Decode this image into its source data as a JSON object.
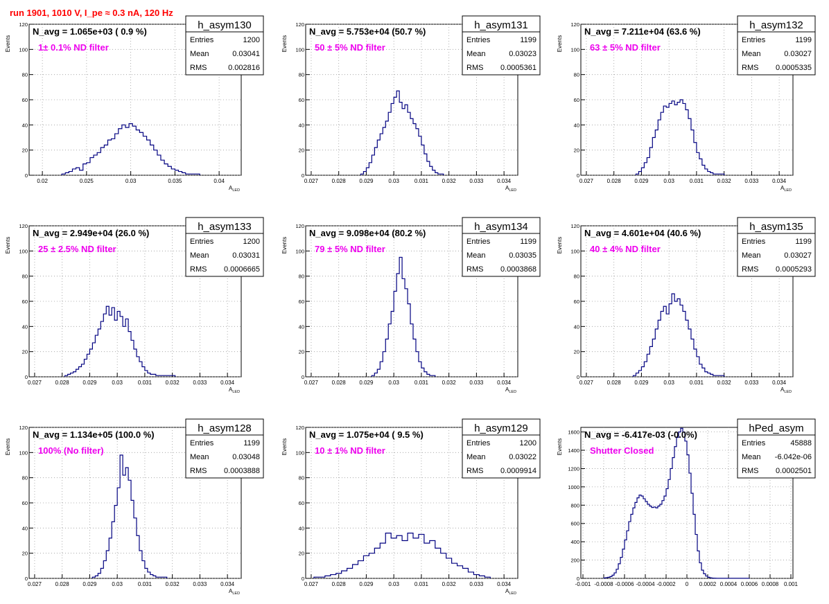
{
  "run_title": "run 1901,  1010 V, I_pe ≈ 0.3 nA, 120 Hz",
  "colors": {
    "histogram": "#000080",
    "note": "#ee00ee",
    "run_title": "#ff0000",
    "grid": "#9a9a9a",
    "axis": "#000000"
  },
  "stats_labels": {
    "entries": "Entries",
    "mean": "Mean",
    "rms": "RMS"
  },
  "chart_data": [
    {
      "type": "bar",
      "name": "h_asym130",
      "navg": "N_avg = 1.065e+03 ( 0.9 %)",
      "note": "1± 0.1% ND filter",
      "stats": {
        "entries": "1200",
        "mean": "0.03041",
        "rms": "0.002816"
      },
      "xlabel": "A_LED",
      "ylabel": "Events",
      "xlim": [
        0.0185,
        0.0425
      ],
      "ylim": [
        0,
        120
      ],
      "xticks": [
        0.02,
        0.025,
        0.03,
        0.035,
        0.04
      ],
      "xticklabels": [
        "0.02",
        "0.025",
        "0.03",
        "0.035",
        "0.04"
      ],
      "yticks": [
        0,
        20,
        40,
        60,
        80,
        100,
        120
      ],
      "grid": true,
      "bin_width": 0.0004,
      "bin_edges": [
        0.0222,
        0.0378
      ],
      "values": [
        1,
        2,
        3,
        5,
        6,
        4,
        9,
        10,
        14,
        16,
        18,
        22,
        24,
        28,
        29,
        33,
        37,
        40,
        38,
        41,
        39,
        36,
        34,
        31,
        28,
        24,
        20,
        16,
        12,
        9,
        7,
        5,
        4,
        3,
        2,
        1,
        1,
        1,
        1
      ]
    },
    {
      "type": "bar",
      "name": "h_asym131",
      "navg": "N_avg = 5.753e+04 (50.7 %)",
      "note": "50 ± 5% ND filter",
      "stats": {
        "entries": "1199",
        "mean": "0.03023",
        "rms": "0.0005361"
      },
      "xlabel": "A_LED",
      "ylabel": "Events",
      "xlim": [
        0.0268,
        0.0345
      ],
      "ylim": [
        0,
        120
      ],
      "xticks": [
        0.027,
        0.028,
        0.029,
        0.03,
        0.031,
        0.032,
        0.033,
        0.034
      ],
      "xticklabels": [
        "0.027",
        "0.028",
        "0.029",
        "0.03",
        "0.031",
        "0.032",
        "0.033",
        "0.034"
      ],
      "yticks": [
        0,
        20,
        40,
        60,
        80,
        100,
        120
      ],
      "grid": true,
      "bin_width": 0.0001,
      "bin_edges": [
        0.0288,
        0.0318
      ],
      "values": [
        1,
        3,
        6,
        10,
        16,
        22,
        28,
        33,
        38,
        43,
        50,
        57,
        62,
        67,
        58,
        53,
        56,
        50,
        45,
        41,
        37,
        31,
        24,
        17,
        11,
        7,
        4,
        2,
        1,
        1
      ]
    },
    {
      "type": "bar",
      "name": "h_asym132",
      "navg": "N_avg = 7.211e+04 (63.6 %)",
      "note": "63 ± 5% ND filter",
      "stats": {
        "entries": "1199",
        "mean": "0.03027",
        "rms": "0.0005335"
      },
      "xlabel": "A_LED",
      "ylabel": "Events",
      "xlim": [
        0.0268,
        0.0345
      ],
      "ylim": [
        0,
        120
      ],
      "xticks": [
        0.027,
        0.028,
        0.029,
        0.03,
        0.031,
        0.032,
        0.033,
        0.034
      ],
      "xticklabels": [
        "0.027",
        "0.028",
        "0.029",
        "0.03",
        "0.031",
        "0.032",
        "0.033",
        "0.034"
      ],
      "yticks": [
        0,
        20,
        40,
        60,
        80,
        100,
        120
      ],
      "grid": true,
      "bin_width": 0.0001,
      "bin_edges": [
        0.0288,
        0.032
      ],
      "values": [
        1,
        3,
        6,
        10,
        14,
        22,
        30,
        36,
        44,
        50,
        55,
        54,
        57,
        59,
        56,
        58,
        60,
        57,
        52,
        45,
        36,
        26,
        18,
        13,
        8,
        5,
        3,
        2,
        1,
        1,
        1,
        1
      ]
    },
    {
      "type": "bar",
      "name": "h_asym133",
      "navg": "N_avg = 2.949e+04 (26.0 %)",
      "note": "25 ± 2.5% ND filter",
      "stats": {
        "entries": "1200",
        "mean": "0.03031",
        "rms": "0.0006665"
      },
      "xlabel": "A_LED",
      "ylabel": "Events",
      "xlim": [
        0.0268,
        0.0345
      ],
      "ylim": [
        0,
        120
      ],
      "xticks": [
        0.027,
        0.028,
        0.029,
        0.03,
        0.031,
        0.032,
        0.033,
        0.034
      ],
      "xticklabels": [
        "0.027",
        "0.028",
        "0.029",
        "0.03",
        "0.031",
        "0.032",
        "0.033",
        "0.034"
      ],
      "yticks": [
        0,
        20,
        40,
        60,
        80,
        100,
        120
      ],
      "grid": true,
      "bin_width": 0.0001,
      "bin_edges": [
        0.0281,
        0.0321
      ],
      "values": [
        1,
        2,
        3,
        4,
        6,
        8,
        10,
        14,
        18,
        22,
        27,
        33,
        38,
        44,
        50,
        56,
        49,
        55,
        45,
        52,
        48,
        40,
        46,
        36,
        29,
        22,
        16,
        12,
        8,
        5,
        3,
        2,
        2,
        1,
        1,
        1,
        1,
        1,
        1,
        1
      ]
    },
    {
      "type": "bar",
      "name": "h_asym134",
      "navg": "N_avg = 9.098e+04 (80.2 %)",
      "note": "79 ± 5% ND filter",
      "stats": {
        "entries": "1199",
        "mean": "0.03035",
        "rms": "0.0003868"
      },
      "xlabel": "A_LED",
      "ylabel": "Events",
      "xlim": [
        0.0268,
        0.0345
      ],
      "ylim": [
        0,
        120
      ],
      "xticks": [
        0.027,
        0.028,
        0.029,
        0.03,
        0.031,
        0.032,
        0.033,
        0.034
      ],
      "xticklabels": [
        "0.027",
        "0.028",
        "0.029",
        "0.03",
        "0.031",
        "0.032",
        "0.033",
        "0.034"
      ],
      "yticks": [
        0,
        20,
        40,
        60,
        80,
        100,
        120
      ],
      "grid": true,
      "bin_width": 0.0001,
      "bin_edges": [
        0.0292,
        0.0315
      ],
      "values": [
        1,
        3,
        6,
        12,
        20,
        30,
        42,
        52,
        68,
        82,
        95,
        78,
        70,
        58,
        42,
        30,
        20,
        12,
        7,
        4,
        2,
        1,
        1
      ]
    },
    {
      "type": "bar",
      "name": "h_asym135",
      "navg": "N_avg = 4.601e+04 (40.6 %)",
      "note": "40 ± 4% ND filter",
      "stats": {
        "entries": "1199",
        "mean": "0.03027",
        "rms": "0.0005293"
      },
      "xlabel": "A_LED",
      "ylabel": "Events",
      "xlim": [
        0.0268,
        0.0345
      ],
      "ylim": [
        0,
        120
      ],
      "xticks": [
        0.027,
        0.028,
        0.029,
        0.03,
        0.031,
        0.032,
        0.033,
        0.034
      ],
      "xticklabels": [
        "0.027",
        "0.028",
        "0.029",
        "0.03",
        "0.031",
        "0.032",
        "0.033",
        "0.034"
      ],
      "yticks": [
        0,
        20,
        40,
        60,
        80,
        100,
        120
      ],
      "grid": true,
      "bin_width": 0.0001,
      "bin_edges": [
        0.0287,
        0.032
      ],
      "values": [
        1,
        3,
        5,
        8,
        12,
        18,
        24,
        30,
        38,
        45,
        52,
        56,
        50,
        58,
        66,
        60,
        62,
        57,
        52,
        45,
        38,
        30,
        22,
        16,
        10,
        7,
        4,
        3,
        2,
        1,
        1,
        1,
        1
      ]
    },
    {
      "type": "bar",
      "name": "h_asym128",
      "navg": "N_avg = 1.134e+05 (100.0 %)",
      "note": "100% (No filter)",
      "stats": {
        "entries": "1199",
        "mean": "0.03048",
        "rms": "0.0003888"
      },
      "xlabel": "A_LED",
      "ylabel": "Events",
      "xlim": [
        0.0268,
        0.0345
      ],
      "ylim": [
        0,
        120
      ],
      "xticks": [
        0.027,
        0.028,
        0.029,
        0.03,
        0.031,
        0.032,
        0.033,
        0.034
      ],
      "xticklabels": [
        "0.027",
        "0.028",
        "0.029",
        "0.03",
        "0.031",
        "0.032",
        "0.033",
        "0.034"
      ],
      "yticks": [
        0,
        20,
        40,
        60,
        80,
        100,
        120
      ],
      "grid": true,
      "bin_width": 0.0001,
      "bin_edges": [
        0.0291,
        0.0318
      ],
      "values": [
        1,
        2,
        4,
        8,
        14,
        22,
        32,
        45,
        58,
        72,
        98,
        82,
        88,
        78,
        62,
        48,
        34,
        22,
        14,
        8,
        5,
        3,
        2,
        1,
        1,
        1,
        1
      ]
    },
    {
      "type": "bar",
      "name": "h_asym129",
      "navg": "N_avg = 1.075e+04 ( 9.5 %)",
      "note": "10 ± 1% ND filter",
      "stats": {
        "entries": "1200",
        "mean": "0.03022",
        "rms": "0.0009914"
      },
      "xlabel": "A_LED",
      "ylabel": "Events",
      "xlim": [
        0.0268,
        0.0345
      ],
      "ylim": [
        0,
        120
      ],
      "xticks": [
        0.027,
        0.028,
        0.029,
        0.03,
        0.031,
        0.032,
        0.033,
        0.034
      ],
      "xticklabels": [
        "0.027",
        "0.028",
        "0.029",
        "0.03",
        "0.031",
        "0.032",
        "0.033",
        "0.034"
      ],
      "yticks": [
        0,
        20,
        40,
        60,
        80,
        100,
        120
      ],
      "grid": true,
      "bin_width": 0.0002,
      "bin_edges": [
        0.0271,
        0.0335
      ],
      "values": [
        1,
        1,
        2,
        3,
        4,
        6,
        8,
        11,
        14,
        18,
        20,
        24,
        28,
        36,
        32,
        34,
        30,
        36,
        32,
        35,
        28,
        30,
        24,
        20,
        16,
        12,
        10,
        8,
        5,
        3,
        2,
        1
      ]
    },
    {
      "type": "bar",
      "name": "hPed_asym",
      "navg": "N_avg = -6.417e-03 (-0.0%)",
      "note": "Shutter Closed",
      "stats": {
        "entries": "45888",
        "mean": "-6.042e-06",
        "rms": "0.0002501"
      },
      "xlabel": "",
      "ylabel": "Events",
      "xlim": [
        -0.00102,
        0.00102
      ],
      "ylim": [
        0,
        1650
      ],
      "xticks": [
        -0.001,
        -0.0008,
        -0.0006,
        -0.0004,
        -0.0002,
        0,
        0.0002,
        0.0004,
        0.0006,
        0.0008,
        0.001
      ],
      "xticklabels": [
        "-0.001",
        "-0.0008",
        "-0.0006",
        "-0.0004",
        "-0.0002",
        "0",
        "0.0002",
        "0.0004",
        "0.0006",
        "0.0008",
        "0.001"
      ],
      "yticks": [
        0,
        200,
        400,
        600,
        800,
        1000,
        1200,
        1400,
        1600
      ],
      "grid": true,
      "bin_width": 2e-05,
      "bin_edges": [
        -0.0008,
        0.0006
      ],
      "values": [
        5,
        8,
        12,
        20,
        35,
        60,
        100,
        160,
        230,
        320,
        420,
        520,
        620,
        700,
        770,
        830,
        880,
        910,
        900,
        870,
        840,
        810,
        790,
        775,
        780,
        770,
        790,
        810,
        850,
        900,
        980,
        1080,
        1200,
        1320,
        1440,
        1540,
        1600,
        1640,
        1600,
        1500,
        1350,
        1150,
        930,
        700,
        480,
        300,
        170,
        90,
        50,
        25,
        12,
        6,
        3,
        2,
        1,
        1,
        1,
        1,
        1,
        1,
        1,
        1,
        1,
        1,
        1,
        1,
        1,
        1,
        1,
        1
      ]
    }
  ]
}
